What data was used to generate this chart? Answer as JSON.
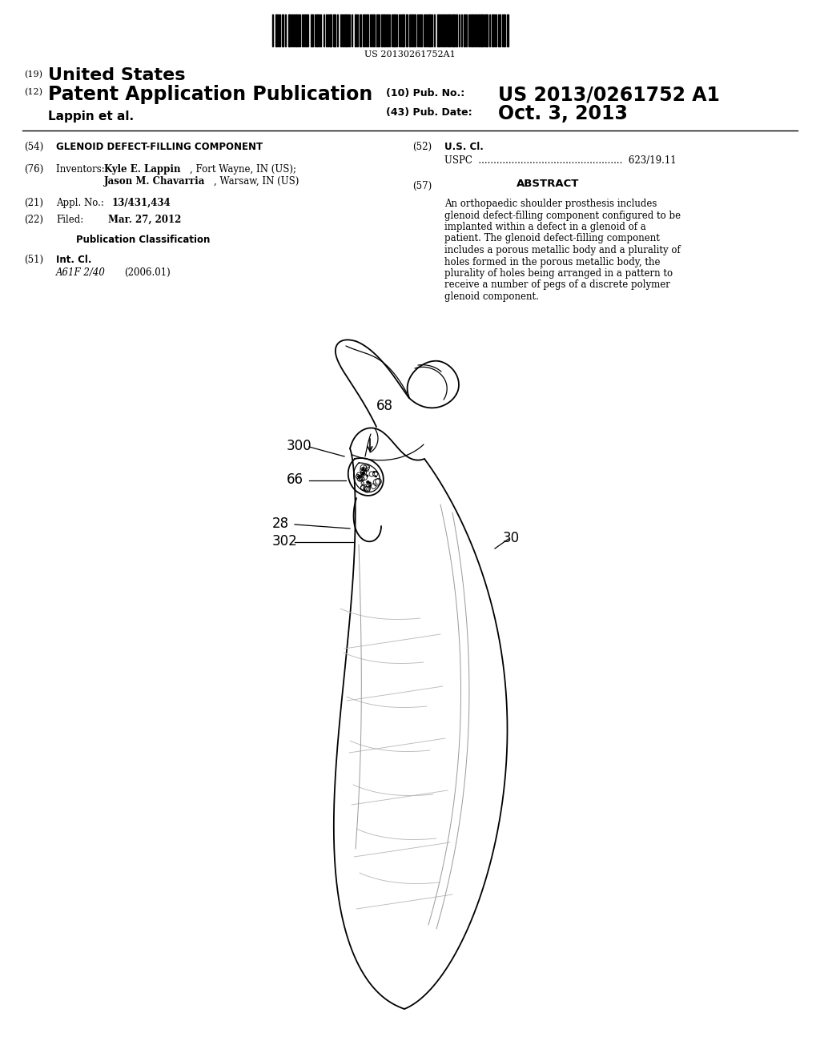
{
  "background_color": "#ffffff",
  "barcode_text": "US 20130261752A1",
  "title_19": "(19)",
  "title_19_text": "United States",
  "title_12": "(12)",
  "title_12_text": "Patent Application Publication",
  "pub_no_label": "(10) Pub. No.:",
  "pub_no_value": "US 2013/0261752 A1",
  "author_line": "Lappin et al.",
  "pub_date_label": "(43) Pub. Date:",
  "pub_date_value": "Oct. 3, 2013",
  "field_54_label": "(54)",
  "field_54_text": "GLENOID DEFECT-FILLING COMPONENT",
  "field_52_label": "(52)",
  "field_52_text": "U.S. Cl.",
  "uspc_text": "USPC  ................................................  623/19.11",
  "field_76_label": "(76)",
  "field_76_text_1": "Inventors:  Kyle E. Lappin, Fort Wayne, IN (US);",
  "field_76_text_2": "Jason M. Chavarria, Warsaw, IN (US)",
  "field_57_label": "(57)",
  "field_57_title": "ABSTRACT",
  "abstract_text": "An orthopaedic shoulder prosthesis includes glenoid defect-filling component configured to be implanted within a defect in a glenoid of a patient. The glenoid defect-filling component includes a porous metallic body and a plurality of holes formed in the porous metallic body, the plurality of holes being arranged in a pattern to receive a number of pegs of a discrete polymer glenoid component.",
  "field_21_label": "(21)",
  "field_21_text": "Appl. No.:  13/431,434",
  "field_22_label": "(22)",
  "field_22_text_label": "Filed:",
  "field_22_text_value": "Mar. 27, 2012",
  "pub_class_title": "Publication Classification",
  "field_51_label": "(51)",
  "field_51_text1": "Int. Cl.",
  "field_51_text2": "A61F 2/40",
  "field_51_text3": "(2006.01)",
  "label_68": "68",
  "label_300": "300",
  "label_66": "66",
  "label_28": "28",
  "label_302": "302",
  "label_30": "30"
}
